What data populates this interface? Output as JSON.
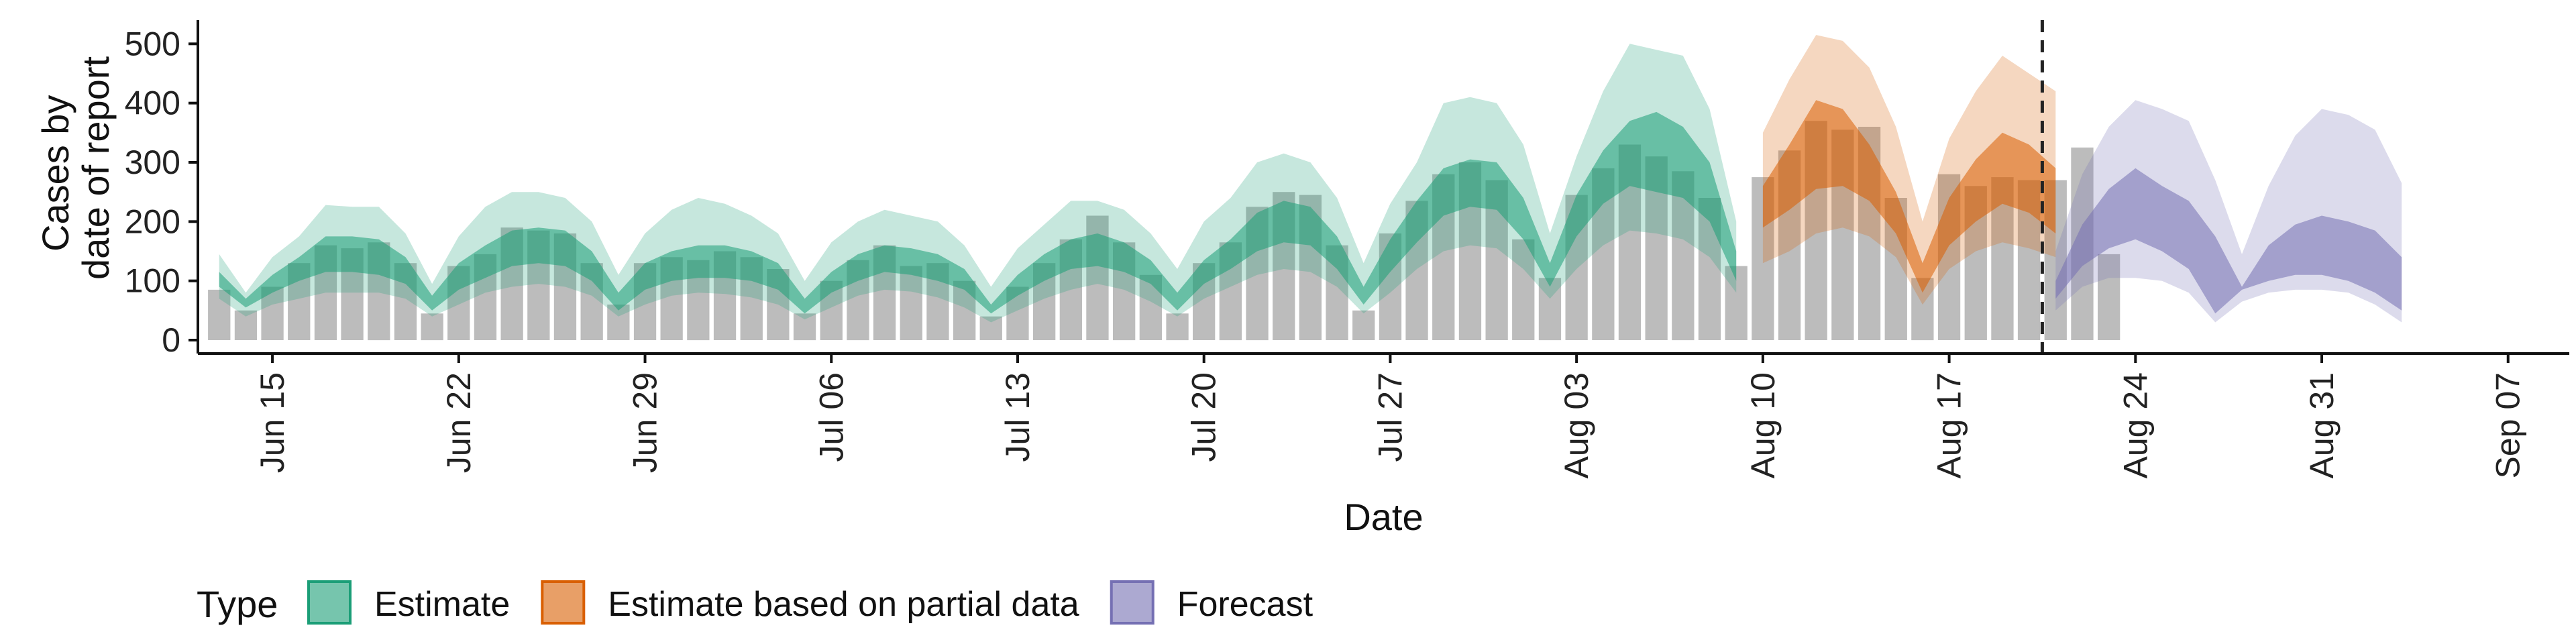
{
  "chart_data": {
    "type": "area",
    "xlabel": "Date",
    "ylabel": [
      "Cases by",
      "date of report"
    ],
    "ylim": [
      0,
      540
    ],
    "y_ticks": [
      0,
      100,
      200,
      300,
      400,
      500
    ],
    "x_ticks": [
      {
        "day": 0,
        "label": "Jun 15"
      },
      {
        "day": 7,
        "label": "Jun 22"
      },
      {
        "day": 14,
        "label": "Jun 29"
      },
      {
        "day": 21,
        "label": "Jul 06"
      },
      {
        "day": 28,
        "label": "Jul 13"
      },
      {
        "day": 35,
        "label": "Jul 20"
      },
      {
        "day": 42,
        "label": "Jul 27"
      },
      {
        "day": 49,
        "label": "Aug 03"
      },
      {
        "day": 56,
        "label": "Aug 10"
      },
      {
        "day": 63,
        "label": "Aug 17"
      },
      {
        "day": 70,
        "label": "Aug 24"
      },
      {
        "day": 77,
        "label": "Aug 31"
      },
      {
        "day": 84,
        "label": "Sep 07"
      }
    ],
    "x_domain": [
      -2.8,
      86.3
    ],
    "day_zero": "Jun 15",
    "forecast_start_day": 66.5,
    "reported_cases": {
      "start_day": -2,
      "values": [
        85,
        50,
        90,
        130,
        160,
        155,
        165,
        130,
        45,
        125,
        145,
        190,
        185,
        180,
        130,
        60,
        130,
        140,
        135,
        150,
        140,
        120,
        45,
        100,
        135,
        160,
        125,
        130,
        100,
        40,
        90,
        130,
        170,
        210,
        165,
        110,
        45,
        130,
        165,
        225,
        250,
        245,
        160,
        50,
        180,
        235,
        280,
        300,
        270,
        170,
        105,
        245,
        290,
        330,
        310,
        285,
        240,
        125,
        275,
        320,
        370,
        355,
        360,
        240,
        105,
        280,
        260,
        275,
        270,
        270,
        325,
        145
      ]
    },
    "series": [
      {
        "name": "Estimate",
        "color": "#1b9e77",
        "start_day": -2,
        "outer_lower": [
          70,
          40,
          60,
          70,
          80,
          80,
          80,
          70,
          40,
          60,
          80,
          90,
          95,
          90,
          75,
          40,
          60,
          75,
          80,
          78,
          72,
          60,
          35,
          55,
          75,
          85,
          82,
          72,
          55,
          30,
          50,
          70,
          85,
          95,
          85,
          65,
          40,
          70,
          90,
          110,
          120,
          115,
          90,
          45,
          80,
          120,
          150,
          160,
          155,
          120,
          70,
          120,
          160,
          185,
          180,
          170,
          140,
          80
        ],
        "outer_upper": [
          145,
          80,
          140,
          175,
          228,
          225,
          225,
          180,
          95,
          175,
          225,
          250,
          250,
          240,
          200,
          110,
          180,
          220,
          240,
          230,
          210,
          180,
          100,
          165,
          200,
          220,
          210,
          200,
          160,
          90,
          155,
          195,
          235,
          235,
          220,
          180,
          120,
          200,
          240,
          300,
          315,
          300,
          240,
          130,
          230,
          300,
          400,
          410,
          400,
          330,
          180,
          310,
          420,
          500,
          490,
          480,
          390,
          200
        ],
        "inner_lower": [
          90,
          55,
          80,
          100,
          115,
          115,
          110,
          95,
          50,
          85,
          105,
          125,
          130,
          125,
          100,
          50,
          85,
          100,
          105,
          105,
          100,
          85,
          45,
          80,
          100,
          115,
          110,
          100,
          85,
          45,
          75,
          100,
          120,
          125,
          115,
          95,
          50,
          95,
          120,
          150,
          165,
          160,
          120,
          60,
          115,
          165,
          210,
          225,
          220,
          170,
          90,
          175,
          230,
          260,
          250,
          240,
          200,
          100
        ],
        "inner_upper": [
          115,
          70,
          110,
          140,
          175,
          175,
          170,
          140,
          75,
          130,
          160,
          185,
          190,
          185,
          150,
          80,
          130,
          150,
          160,
          160,
          150,
          130,
          70,
          115,
          145,
          160,
          155,
          145,
          120,
          60,
          110,
          145,
          170,
          180,
          165,
          135,
          80,
          135,
          170,
          215,
          235,
          225,
          175,
          90,
          170,
          235,
          290,
          305,
          300,
          240,
          130,
          245,
          320,
          370,
          385,
          360,
          300,
          150
        ]
      },
      {
        "name": "Estimate based on partial data",
        "color": "#d95f02",
        "start_day": 56,
        "outer_lower": [
          130,
          150,
          180,
          190,
          175,
          140,
          60,
          120,
          150,
          165,
          155,
          140
        ],
        "outer_upper": [
          350,
          440,
          515,
          505,
          460,
          360,
          200,
          340,
          420,
          480,
          450,
          420
        ],
        "inner_lower": [
          190,
          220,
          255,
          260,
          235,
          180,
          80,
          160,
          200,
          230,
          215,
          180
        ],
        "inner_upper": [
          260,
          330,
          405,
          390,
          330,
          250,
          130,
          240,
          305,
          350,
          330,
          290
        ]
      },
      {
        "name": "Forecast",
        "color": "#7570b3",
        "start_day": 67,
        "outer_lower": [
          50,
          90,
          105,
          105,
          100,
          80,
          30,
          65,
          80,
          85,
          85,
          80,
          60,
          30
        ],
        "outer_upper": [
          150,
          280,
          360,
          405,
          390,
          370,
          270,
          145,
          260,
          345,
          390,
          380,
          355,
          265
        ],
        "inner_lower": [
          70,
          125,
          155,
          170,
          150,
          120,
          45,
          85,
          100,
          110,
          110,
          100,
          80,
          50
        ],
        "inner_upper": [
          100,
          195,
          255,
          290,
          260,
          235,
          175,
          90,
          160,
          195,
          210,
          200,
          185,
          140
        ]
      }
    ],
    "legend": {
      "title": "Type",
      "position": "bottom",
      "items": [
        "Estimate",
        "Estimate based on partial data",
        "Forecast"
      ]
    }
  }
}
